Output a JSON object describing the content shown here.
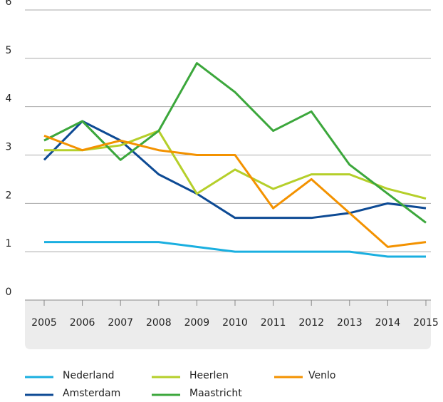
{
  "chart_data": {
    "type": "line",
    "categories": [
      "2005",
      "2006",
      "2007",
      "2008",
      "2009",
      "2010",
      "2011",
      "2012",
      "2013",
      "2014",
      "2015"
    ],
    "series": [
      {
        "name": "Nederland",
        "color": "#1aafe0",
        "values": [
          1.2,
          1.2,
          1.2,
          1.2,
          1.1,
          1.0,
          1.0,
          1.0,
          1.0,
          0.9,
          0.9
        ]
      },
      {
        "name": "Amsterdam",
        "color": "#0d4a94",
        "values": [
          2.9,
          3.7,
          3.3,
          2.6,
          2.2,
          1.7,
          1.7,
          1.7,
          1.8,
          2.0,
          1.9
        ]
      },
      {
        "name": "Heerlen",
        "color": "#b5cf2a",
        "values": [
          3.1,
          3.1,
          3.2,
          3.5,
          2.2,
          2.7,
          2.3,
          2.6,
          2.6,
          2.3,
          2.1
        ]
      },
      {
        "name": "Maastricht",
        "color": "#3ca73c",
        "values": [
          3.3,
          3.7,
          2.9,
          3.5,
          4.9,
          4.3,
          3.5,
          3.9,
          2.8,
          2.2,
          1.6
        ]
      },
      {
        "name": "Venlo",
        "color": "#f39200",
        "values": [
          3.4,
          3.1,
          3.3,
          3.1,
          3.0,
          3.0,
          1.9,
          2.5,
          1.8,
          1.1,
          1.2
        ]
      }
    ],
    "ylim": [
      0,
      6
    ],
    "yticks": [
      0,
      1,
      2,
      3,
      4,
      5,
      6
    ],
    "grid": true
  }
}
